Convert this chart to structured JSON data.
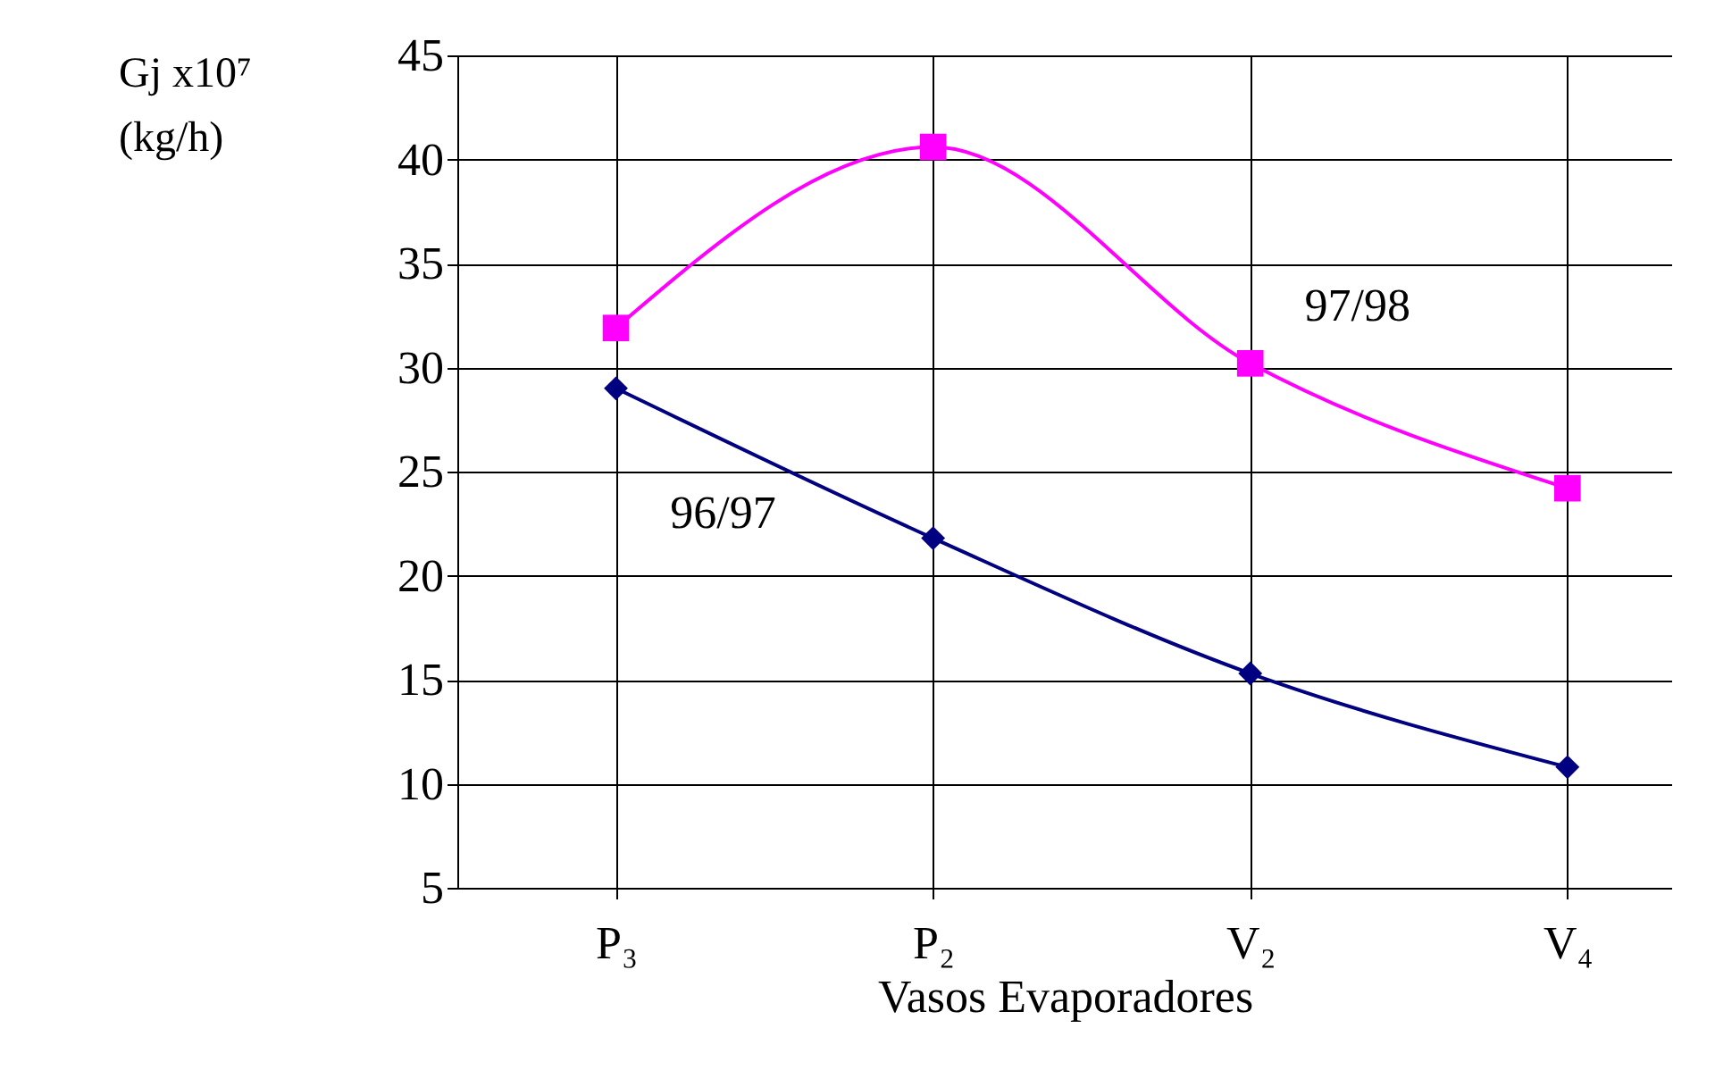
{
  "chart_data": {
    "type": "line",
    "xlabel": "Vasos Evaporadores",
    "ylabel": "Gj x10⁷ (kg/h)",
    "categories": [
      "P₃",
      "P₂",
      "V₂",
      "V₄"
    ],
    "series": [
      {
        "name": "96/97",
        "color": "#000080",
        "marker": "diamond",
        "values": [
          29.0,
          21.8,
          15.3,
          10.8
        ]
      },
      {
        "name": "97/98",
        "color": "#ff00ff",
        "marker": "square",
        "values": [
          31.9,
          40.6,
          30.2,
          24.2
        ]
      }
    ],
    "ylim": [
      5,
      45
    ],
    "yticks": [
      5,
      10,
      15,
      20,
      25,
      30,
      35,
      40,
      45
    ],
    "grid": true
  }
}
